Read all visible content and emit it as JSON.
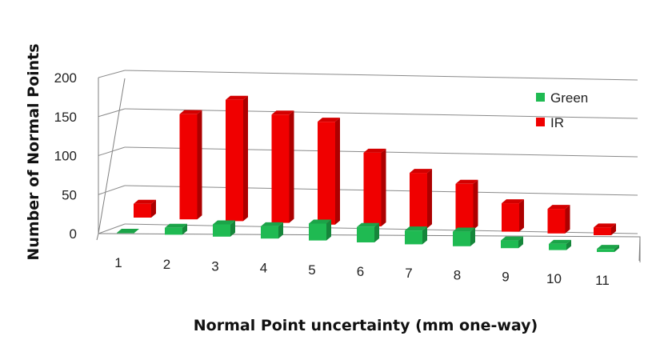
{
  "chart_data": {
    "type": "bar",
    "style": "3d-clustered-depth",
    "xlabel": "Normal Point uncertainty (mm one-way)",
    "ylabel": "Number of Normal Points",
    "categories": [
      "1",
      "2",
      "3",
      "4",
      "5",
      "6",
      "7",
      "8",
      "9",
      "10",
      "11"
    ],
    "y_ticks": [
      "0",
      "50",
      "100",
      "150",
      "200"
    ],
    "ylim": [
      0,
      200
    ],
    "grid": true,
    "legend_position": "top-right",
    "series": [
      {
        "name": "Green",
        "color": "#1fba52",
        "values": [
          0,
          9,
          16,
          16,
          22,
          20,
          18,
          19,
          10,
          8,
          4
        ]
      },
      {
        "name": "IR",
        "color": "#f00000",
        "values": [
          18,
          137,
          158,
          141,
          134,
          96,
          72,
          60,
          37,
          32,
          10
        ]
      }
    ]
  }
}
